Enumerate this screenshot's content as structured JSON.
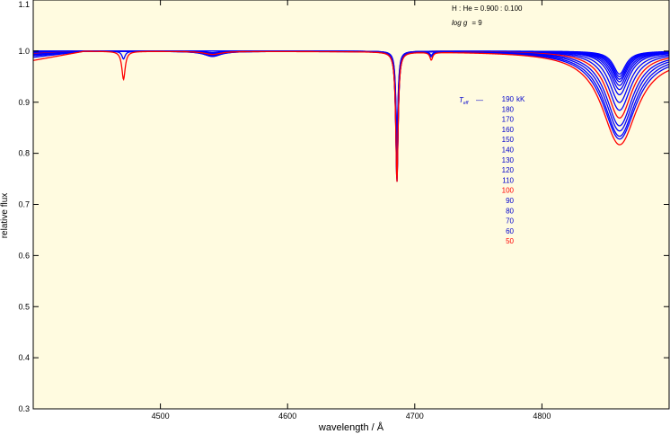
{
  "chart_data": {
    "type": "line",
    "title": "",
    "xlabel": "wavelength / Å",
    "ylabel": "relative flux",
    "xlim": [
      4400,
      4900
    ],
    "ylim": [
      0.3,
      1.1
    ],
    "xticks": [
      4500,
      4600,
      4700,
      4800
    ],
    "xtick_labels": [
      "4500",
      "4600",
      "4700",
      "4800"
    ],
    "yticks": [
      0.3,
      0.4,
      0.5,
      0.6,
      0.7,
      0.8,
      0.9,
      1.0,
      1.1
    ],
    "ytick_labels": [
      "0.3",
      "0.4",
      "0.5",
      "0.6",
      "0.7",
      "0.8",
      "0.9",
      "1.0",
      "1.1"
    ],
    "grid": false,
    "background_color": "#fffbe0",
    "annotations": {
      "composition": "H : He = 0.900 : 0.100",
      "gravity_label": "log g",
      "gravity_value": "= 9",
      "teff_label": "T",
      "teff_subscript": "eff",
      "teff_dash": "—",
      "teff_unit": "kK"
    },
    "legend": {
      "placement": "right-center",
      "entries": [
        {
          "label": "190",
          "color": "#0000cc"
        },
        {
          "label": "180",
          "color": "#0000cc"
        },
        {
          "label": "170",
          "color": "#0000cc"
        },
        {
          "label": "160",
          "color": "#0000cc"
        },
        {
          "label": "150",
          "color": "#0000cc"
        },
        {
          "label": "140",
          "color": "#0000cc"
        },
        {
          "label": "130",
          "color": "#0000cc"
        },
        {
          "label": "120",
          "color": "#0000cc"
        },
        {
          "label": "110",
          "color": "#0000cc"
        },
        {
          "label": "100",
          "color": "#ff0000"
        },
        {
          "label": "90",
          "color": "#0000cc"
        },
        {
          "label": "80",
          "color": "#0000cc"
        },
        {
          "label": "70",
          "color": "#0000cc"
        },
        {
          "label": "60",
          "color": "#0000cc"
        },
        {
          "label": "50",
          "color": "#ff0000"
        }
      ]
    },
    "series": [
      {
        "teff_kK": 190,
        "color": "#0000ff",
        "continuum_dip": 0.0,
        "lines": [
          {
            "center": 4686,
            "depth": 0.16,
            "width": 1.1
          },
          {
            "center": 4861,
            "depth": 0.045,
            "width": 6
          }
        ]
      },
      {
        "teff_kK": 180,
        "color": "#0000ff",
        "continuum_dip": 0.0,
        "lines": [
          {
            "center": 4686,
            "depth": 0.17,
            "width": 1.1
          },
          {
            "center": 4861,
            "depth": 0.05,
            "width": 6.5
          }
        ]
      },
      {
        "teff_kK": 170,
        "color": "#0000ff",
        "continuum_dip": 0.0,
        "lines": [
          {
            "center": 4686,
            "depth": 0.18,
            "width": 1.1
          },
          {
            "center": 4861,
            "depth": 0.055,
            "width": 7
          }
        ]
      },
      {
        "teff_kK": 160,
        "color": "#0000ff",
        "continuum_dip": 0.0,
        "lines": [
          {
            "center": 4686,
            "depth": 0.19,
            "width": 1.1
          },
          {
            "center": 4861,
            "depth": 0.06,
            "width": 7.5
          }
        ]
      },
      {
        "teff_kK": 150,
        "color": "#0000ff",
        "continuum_dip": 0.001,
        "lines": [
          {
            "center": 4686,
            "depth": 0.2,
            "width": 1.1
          },
          {
            "center": 4861,
            "depth": 0.067,
            "width": 8
          }
        ]
      },
      {
        "teff_kK": 140,
        "color": "#0000ff",
        "continuum_dip": 0.001,
        "lines": [
          {
            "center": 4686,
            "depth": 0.21,
            "width": 1.1
          },
          {
            "center": 4861,
            "depth": 0.075,
            "width": 8.5
          },
          {
            "center": 4541,
            "depth": 0.003,
            "width": 8
          }
        ]
      },
      {
        "teff_kK": 130,
        "color": "#0000ff",
        "continuum_dip": 0.002,
        "lines": [
          {
            "center": 4686,
            "depth": 0.22,
            "width": 1.1
          },
          {
            "center": 4861,
            "depth": 0.085,
            "width": 9
          },
          {
            "center": 4541,
            "depth": 0.004,
            "width": 8
          }
        ]
      },
      {
        "teff_kK": 120,
        "color": "#0000ff",
        "continuum_dip": 0.003,
        "lines": [
          {
            "center": 4686,
            "depth": 0.225,
            "width": 1.1
          },
          {
            "center": 4861,
            "depth": 0.1,
            "width": 10
          },
          {
            "center": 4541,
            "depth": 0.005,
            "width": 8
          }
        ]
      },
      {
        "teff_kK": 110,
        "color": "#0000ff",
        "continuum_dip": 0.004,
        "lines": [
          {
            "center": 4686,
            "depth": 0.23,
            "width": 1.1
          },
          {
            "center": 4861,
            "depth": 0.115,
            "width": 11
          },
          {
            "center": 4541,
            "depth": 0.006,
            "width": 8
          }
        ]
      },
      {
        "teff_kK": 100,
        "color": "#ff0000",
        "continuum_dip": 0.005,
        "lines": [
          {
            "center": 4686,
            "depth": 0.235,
            "width": 1.1
          },
          {
            "center": 4861,
            "depth": 0.13,
            "width": 12
          },
          {
            "center": 4541,
            "depth": 0.007,
            "width": 8
          }
        ]
      },
      {
        "teff_kK": 90,
        "color": "#0000ff",
        "continuum_dip": 0.006,
        "lines": [
          {
            "center": 4686,
            "depth": 0.24,
            "width": 1.1
          },
          {
            "center": 4861,
            "depth": 0.145,
            "width": 13
          },
          {
            "center": 4541,
            "depth": 0.008,
            "width": 8
          }
        ]
      },
      {
        "teff_kK": 80,
        "color": "#0000ff",
        "continuum_dip": 0.007,
        "lines": [
          {
            "center": 4686,
            "depth": 0.245,
            "width": 1.1
          },
          {
            "center": 4861,
            "depth": 0.155,
            "width": 14
          },
          {
            "center": 4541,
            "depth": 0.009,
            "width": 8
          }
        ]
      },
      {
        "teff_kK": 70,
        "color": "#0000ff",
        "continuum_dip": 0.009,
        "lines": [
          {
            "center": 4686,
            "depth": 0.25,
            "width": 1.1
          },
          {
            "center": 4861,
            "depth": 0.165,
            "width": 15
          },
          {
            "center": 4541,
            "depth": 0.01,
            "width": 8
          },
          {
            "center": 4713,
            "depth": 0.006,
            "width": 1.2
          }
        ]
      },
      {
        "teff_kK": 60,
        "color": "#0000ff",
        "continuum_dip": 0.012,
        "lines": [
          {
            "center": 4686,
            "depth": 0.255,
            "width": 1.1
          },
          {
            "center": 4861,
            "depth": 0.17,
            "width": 16
          },
          {
            "center": 4541,
            "depth": 0.01,
            "width": 8
          },
          {
            "center": 4471,
            "depth": 0.015,
            "width": 1.5
          },
          {
            "center": 4713,
            "depth": 0.009,
            "width": 1.2
          }
        ]
      },
      {
        "teff_kK": 50,
        "color": "#ff0000",
        "continuum_dip": 0.018,
        "lines": [
          {
            "center": 4686,
            "depth": 0.255,
            "width": 1.1
          },
          {
            "center": 4861,
            "depth": 0.18,
            "width": 17
          },
          {
            "center": 4541,
            "depth": 0.006,
            "width": 8
          },
          {
            "center": 4471,
            "depth": 0.055,
            "width": 1.6
          },
          {
            "center": 4713,
            "depth": 0.015,
            "width": 1.3
          }
        ]
      }
    ]
  }
}
